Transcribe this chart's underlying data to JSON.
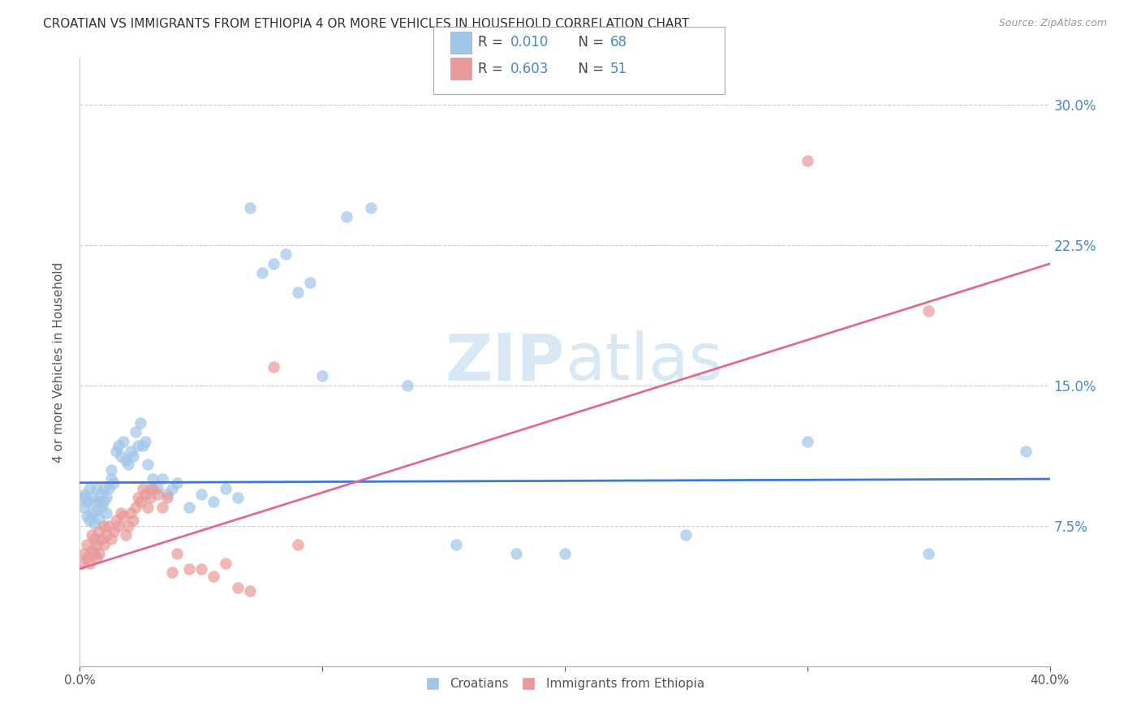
{
  "title": "CROATIAN VS IMMIGRANTS FROM ETHIOPIA 4 OR MORE VEHICLES IN HOUSEHOLD CORRELATION CHART",
  "source": "Source: ZipAtlas.com",
  "ylabel": "4 or more Vehicles in Household",
  "x_min": 0.0,
  "x_max": 0.4,
  "y_min": 0.0,
  "y_max": 0.325,
  "y_ticks": [
    0.075,
    0.15,
    0.225,
    0.3
  ],
  "y_tick_labels": [
    "7.5%",
    "15.0%",
    "22.5%",
    "30.0%"
  ],
  "x_ticks": [
    0.0,
    0.1,
    0.2,
    0.3,
    0.4
  ],
  "x_tick_labels": [
    "0.0%",
    "",
    "",
    "",
    "40.0%"
  ],
  "croatian_R": 0.01,
  "croatian_N": 68,
  "ethiopia_R": 0.603,
  "ethiopia_N": 51,
  "blue_color": "#9fc5e8",
  "pink_color": "#ea9999",
  "blue_line_color": "#3c78d8",
  "pink_line_color": "#e06b8a",
  "text_blue": "#4a86c8",
  "text_dark": "#444444",
  "watermark_color": "#d8e8f5",
  "croatian_x": [
    0.001,
    0.002,
    0.002,
    0.003,
    0.003,
    0.004,
    0.004,
    0.005,
    0.005,
    0.006,
    0.006,
    0.007,
    0.007,
    0.008,
    0.008,
    0.009,
    0.009,
    0.01,
    0.01,
    0.011,
    0.011,
    0.012,
    0.013,
    0.013,
    0.014,
    0.015,
    0.016,
    0.017,
    0.018,
    0.019,
    0.02,
    0.021,
    0.022,
    0.023,
    0.024,
    0.025,
    0.026,
    0.027,
    0.028,
    0.029,
    0.03,
    0.032,
    0.034,
    0.036,
    0.038,
    0.04,
    0.045,
    0.05,
    0.055,
    0.06,
    0.065,
    0.07,
    0.075,
    0.08,
    0.085,
    0.09,
    0.095,
    0.1,
    0.11,
    0.12,
    0.135,
    0.155,
    0.18,
    0.2,
    0.25,
    0.3,
    0.35,
    0.39
  ],
  "croatian_y": [
    0.09,
    0.085,
    0.092,
    0.08,
    0.088,
    0.078,
    0.095,
    0.082,
    0.09,
    0.076,
    0.088,
    0.083,
    0.095,
    0.079,
    0.088,
    0.085,
    0.092,
    0.088,
    0.095,
    0.082,
    0.09,
    0.095,
    0.1,
    0.105,
    0.098,
    0.115,
    0.118,
    0.112,
    0.12,
    0.11,
    0.108,
    0.115,
    0.112,
    0.125,
    0.118,
    0.13,
    0.118,
    0.12,
    0.108,
    0.095,
    0.1,
    0.095,
    0.1,
    0.092,
    0.095,
    0.098,
    0.085,
    0.092,
    0.088,
    0.095,
    0.09,
    0.245,
    0.21,
    0.215,
    0.22,
    0.2,
    0.205,
    0.155,
    0.24,
    0.245,
    0.15,
    0.065,
    0.06,
    0.06,
    0.07,
    0.12,
    0.06,
    0.115
  ],
  "ethiopia_x": [
    0.001,
    0.002,
    0.003,
    0.003,
    0.004,
    0.005,
    0.005,
    0.006,
    0.006,
    0.007,
    0.007,
    0.008,
    0.008,
    0.009,
    0.01,
    0.01,
    0.011,
    0.012,
    0.013,
    0.014,
    0.015,
    0.016,
    0.017,
    0.018,
    0.019,
    0.02,
    0.021,
    0.022,
    0.023,
    0.024,
    0.025,
    0.026,
    0.027,
    0.028,
    0.029,
    0.03,
    0.032,
    0.034,
    0.036,
    0.038,
    0.04,
    0.045,
    0.05,
    0.055,
    0.06,
    0.065,
    0.07,
    0.08,
    0.09,
    0.3,
    0.35
  ],
  "ethiopia_y": [
    0.055,
    0.06,
    0.058,
    0.065,
    0.055,
    0.062,
    0.07,
    0.06,
    0.068,
    0.065,
    0.058,
    0.072,
    0.06,
    0.068,
    0.065,
    0.075,
    0.07,
    0.075,
    0.068,
    0.072,
    0.078,
    0.075,
    0.082,
    0.08,
    0.07,
    0.075,
    0.082,
    0.078,
    0.085,
    0.09,
    0.088,
    0.095,
    0.092,
    0.085,
    0.09,
    0.095,
    0.092,
    0.085,
    0.09,
    0.05,
    0.06,
    0.052,
    0.052,
    0.048,
    0.055,
    0.042,
    0.04,
    0.16,
    0.065,
    0.27,
    0.19
  ],
  "blue_line_x": [
    0.0,
    0.4
  ],
  "blue_line_y": [
    0.098,
    0.1
  ],
  "pink_line_x": [
    0.0,
    0.4
  ],
  "pink_line_y": [
    0.052,
    0.215
  ]
}
